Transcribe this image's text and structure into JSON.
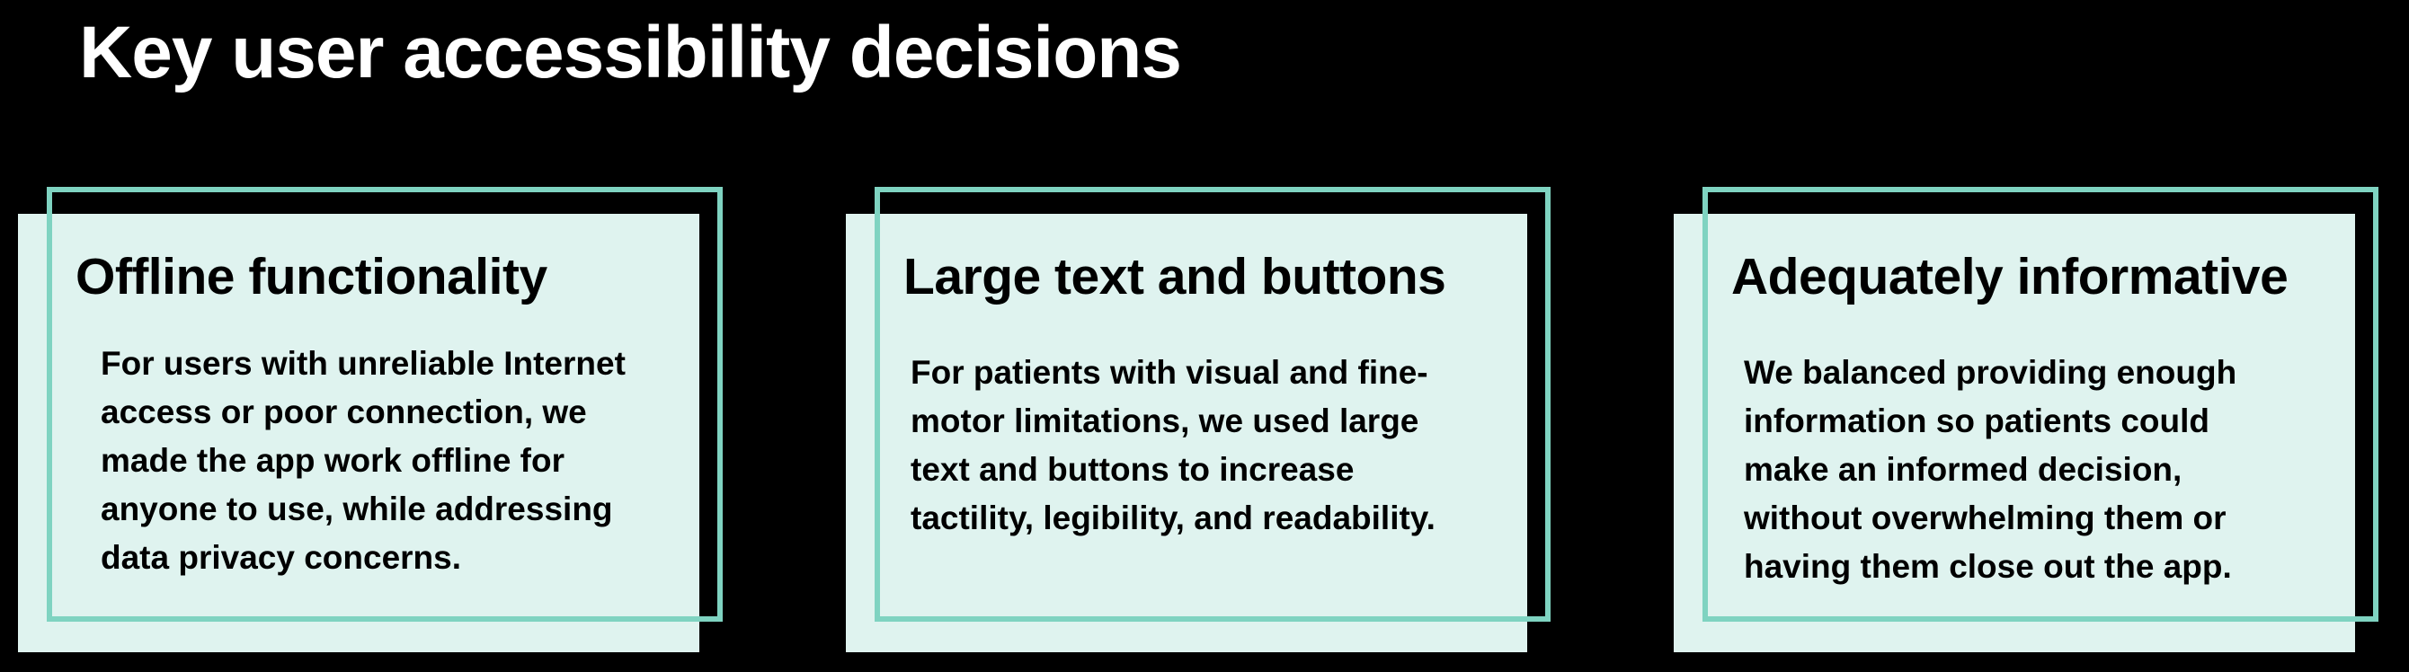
{
  "page": {
    "title": "Key user accessibility decisions"
  },
  "colors": {
    "background": "#000000",
    "card_fill": "#dff3ef",
    "card_outline": "#7fd3c1",
    "title_text": "#ffffff",
    "card_text": "#000000"
  },
  "cards": [
    {
      "heading": "Offline functionality",
      "body": "For users with unreliable Internet access or poor connection, we made the app work offline for anyone to use, while addressing data privacy concerns."
    },
    {
      "heading": "Large text and buttons",
      "body": "For patients with visual and fine-motor limitations, we used large text and buttons to increase tactility, legibility, and readability."
    },
    {
      "heading": "Adequately informative",
      "body": "We balanced providing enough information so patients could make an informed decision, without overwhelming them or having them close out the app."
    }
  ]
}
